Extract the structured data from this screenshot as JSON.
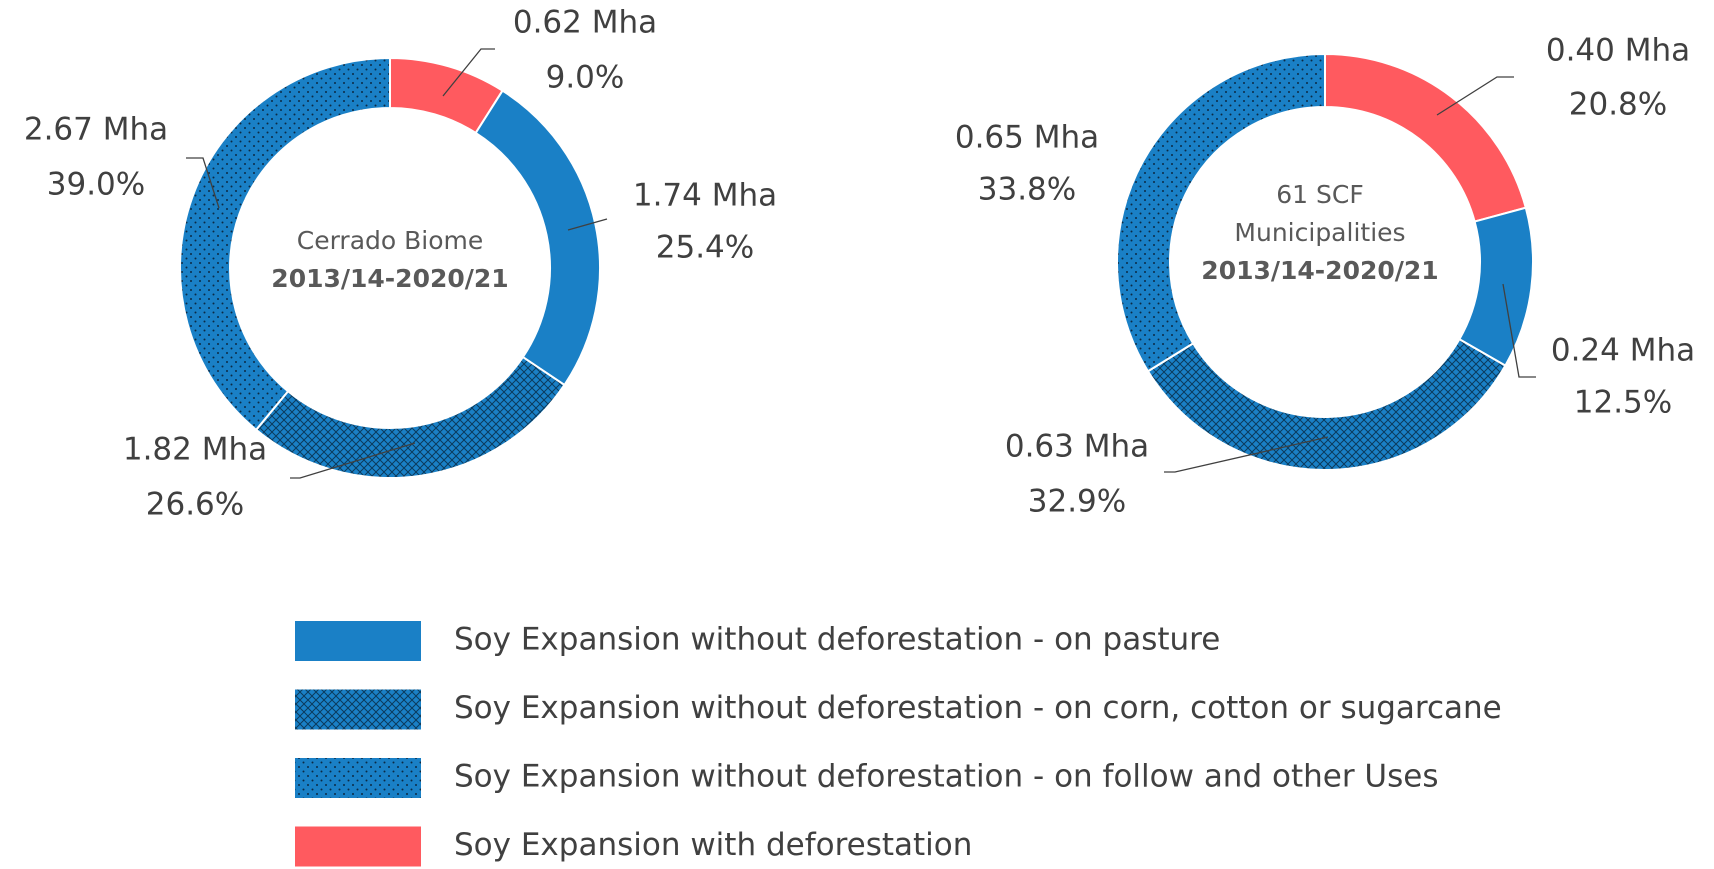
{
  "chart_data": [
    {
      "type": "pie",
      "title": "Cerrado Biome",
      "subtitle": "2013/14-2020/21",
      "categories": [
        "Soy Expansion without deforestation - on pasture",
        "Soy Expansion without deforestation - on corn, cotton or sugarcane",
        "Soy Expansion without deforestation - on follow and other Uses",
        "Soy Expansion with deforestation"
      ],
      "colors": [
        "#1a80c6",
        "#1a80c6",
        "#1a80c6",
        "#ff5a5f"
      ],
      "patterns": [
        "solid",
        "crosshatch",
        "dots",
        "solid"
      ],
      "values": [
        1.74,
        1.82,
        2.67,
        0.62
      ],
      "value_labels": [
        "1.74 Mha",
        "1.82 Mha",
        "2.67 Mha",
        "0.62 Mha"
      ],
      "percents": [
        25.4,
        26.6,
        39.0,
        9.0
      ],
      "percent_labels": [
        "25.4%",
        "26.6%",
        "39.0%",
        "9.0%"
      ],
      "legend": "bottom"
    },
    {
      "type": "pie",
      "title": "61 SCF Municipalities",
      "subtitle": "2013/14-2020/21",
      "categories": [
        "Soy Expansion without deforestation - on pasture",
        "Soy Expansion without deforestation - on corn, cotton or sugarcane",
        "Soy Expansion without deforestation - on follow and other Uses",
        "Soy Expansion with deforestation"
      ],
      "colors": [
        "#1a80c6",
        "#1a80c6",
        "#1a80c6",
        "#ff5a5f"
      ],
      "patterns": [
        "solid",
        "crosshatch",
        "dots",
        "solid"
      ],
      "values": [
        0.24,
        0.63,
        0.65,
        0.4
      ],
      "value_labels": [
        "0.24 Mha",
        "0.63 Mha",
        "0.65 Mha",
        "0.40 Mha"
      ],
      "percents": [
        12.5,
        32.9,
        33.8,
        20.8
      ],
      "percent_labels": [
        "12.5%",
        "32.9%",
        "33.8%",
        "20.8%"
      ],
      "legend": "bottom"
    }
  ]
}
